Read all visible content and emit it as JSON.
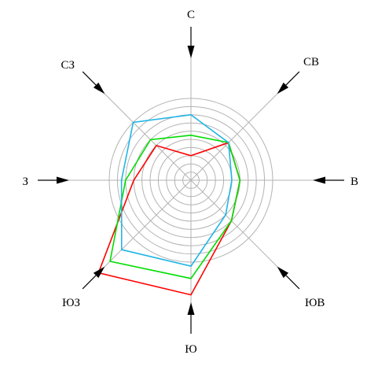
{
  "chart_data": {
    "type": "radar",
    "title": "",
    "directions": [
      "С",
      "СВ",
      "В",
      "ЮВ",
      "Ю",
      "ЮЗ",
      "З",
      "СЗ"
    ],
    "rings": 10,
    "r_max": 10,
    "grid": true,
    "legend": "none",
    "series": [
      {
        "color": "#ff0000",
        "values": [
          3.0,
          6.5,
          6.0,
          7.0,
          14.0,
          16.0,
          7.0,
          6.0
        ]
      },
      {
        "color": "#00dd00",
        "values": [
          5.5,
          6.5,
          6.0,
          7.0,
          12.0,
          14.0,
          8.0,
          7.0
        ]
      },
      {
        "color": "#22b5e6",
        "values": [
          8.0,
          6.5,
          5.0,
          6.0,
          10.5,
          12.0,
          8.5,
          10.0
        ]
      }
    ]
  }
}
